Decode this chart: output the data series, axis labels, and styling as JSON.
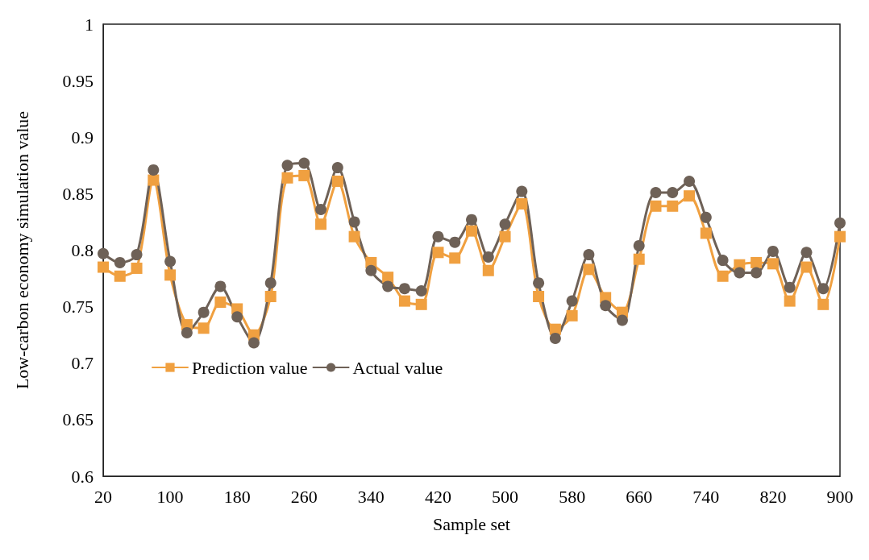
{
  "chart_data": {
    "type": "line",
    "xlabel": "Sample set",
    "ylabel": "Low-carbon economy simulation value",
    "x": [
      20,
      40,
      60,
      80,
      100,
      120,
      140,
      160,
      180,
      200,
      220,
      240,
      260,
      280,
      300,
      320,
      340,
      360,
      380,
      400,
      420,
      440,
      460,
      480,
      500,
      520,
      540,
      560,
      580,
      600,
      620,
      640,
      660,
      680,
      700,
      720,
      740,
      760,
      780,
      800,
      820,
      840,
      860,
      880,
      900
    ],
    "series": [
      {
        "name": "Prediction value",
        "color": "#f0a040",
        "marker": "square",
        "values": [
          0.785,
          0.777,
          0.784,
          0.862,
          0.778,
          0.734,
          0.731,
          0.754,
          0.748,
          0.725,
          0.759,
          0.864,
          0.866,
          0.823,
          0.861,
          0.812,
          0.789,
          0.776,
          0.755,
          0.752,
          0.798,
          0.793,
          0.817,
          0.782,
          0.812,
          0.841,
          0.759,
          0.73,
          0.742,
          0.783,
          0.758,
          0.745,
          0.792,
          0.839,
          0.839,
          0.848,
          0.815,
          0.777,
          0.787,
          0.789,
          0.788,
          0.755,
          0.785,
          0.752,
          0.812
        ]
      },
      {
        "name": "Actual value",
        "color": "#6e6157",
        "marker": "circle",
        "values": [
          0.797,
          0.789,
          0.796,
          0.871,
          0.79,
          0.727,
          0.745,
          0.768,
          0.741,
          0.718,
          0.771,
          0.875,
          0.877,
          0.836,
          0.873,
          0.825,
          0.782,
          0.768,
          0.766,
          0.764,
          0.812,
          0.807,
          0.827,
          0.794,
          0.823,
          0.852,
          0.771,
          0.722,
          0.755,
          0.796,
          0.751,
          0.738,
          0.804,
          0.851,
          0.851,
          0.861,
          0.829,
          0.791,
          0.78,
          0.78,
          0.799,
          0.767,
          0.798,
          0.766,
          0.824
        ]
      }
    ],
    "xlim": [
      20,
      900
    ],
    "xticks": [
      20,
      100,
      180,
      260,
      340,
      420,
      500,
      580,
      660,
      740,
      820,
      900
    ],
    "ylim": [
      0.6,
      1
    ],
    "yticks": [
      0.6,
      0.65,
      0.7,
      0.75,
      0.8,
      0.85,
      0.9,
      0.95,
      1
    ],
    "grid": false,
    "legend": "bottom left",
    "line_style": "solid"
  }
}
